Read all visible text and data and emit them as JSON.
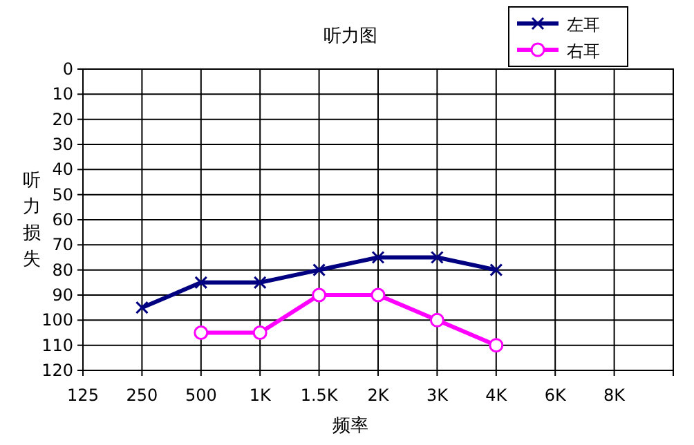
{
  "chart_data": {
    "type": "line",
    "title": "听力图",
    "xlabel": "频率",
    "ylabel": "听力损失",
    "categories": [
      "125",
      "250",
      "500",
      "1K",
      "1.5K",
      "2K",
      "3K",
      "4K",
      "6K",
      "8K"
    ],
    "ylim": [
      120,
      0
    ],
    "yticks": [
      0,
      10,
      20,
      30,
      40,
      50,
      60,
      70,
      80,
      90,
      100,
      110,
      120
    ],
    "grid": true,
    "legend": "top right",
    "series": [
      {
        "name": "左耳",
        "color": "#000080",
        "marker": "cross",
        "values": [
          null,
          95,
          85,
          85,
          80,
          75,
          75,
          80,
          null,
          null
        ]
      },
      {
        "name": "右耳",
        "color": "#ff00ff",
        "marker": "circle",
        "values": [
          null,
          null,
          105,
          105,
          90,
          90,
          100,
          110,
          null,
          null
        ]
      }
    ]
  }
}
